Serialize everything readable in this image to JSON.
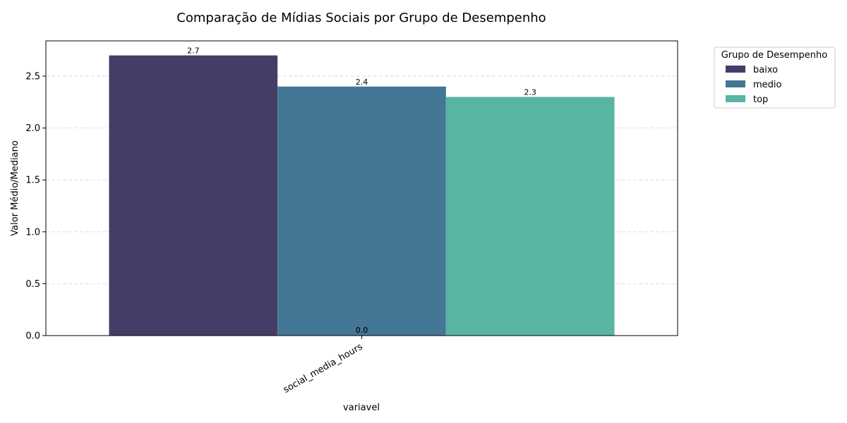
{
  "chart_data": {
    "type": "bar",
    "title": "Comparação de Mídias Sociais por Grupo de Desempenho",
    "xlabel": "variavel",
    "ylabel": "Valor Médio/Mediano",
    "categories": [
      "social_media_hours"
    ],
    "series": [
      {
        "name": "baixo",
        "values": [
          2.7
        ],
        "color": "#433e65"
      },
      {
        "name": "medio",
        "values": [
          2.4
        ],
        "color": "#447795"
      },
      {
        "name": "top",
        "values": [
          2.3
        ],
        "color": "#58b4a3"
      }
    ],
    "extra_data_labels": [
      "0.0",
      "0.0"
    ],
    "ylim": [
      0,
      2.84
    ],
    "yticks": [
      0.0,
      0.5,
      1.0,
      1.5,
      2.0,
      2.5
    ],
    "grid": true,
    "legend": {
      "title": "Grupo de Desempenho",
      "placement": "outside-top-right"
    }
  }
}
